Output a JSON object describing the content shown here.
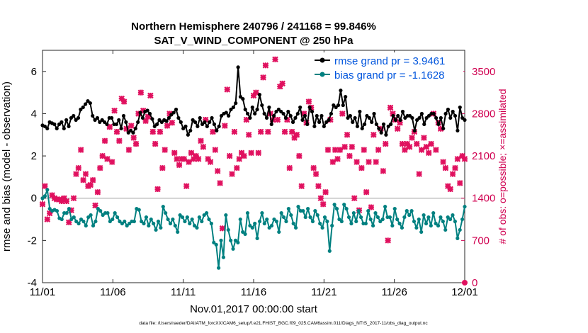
{
  "chart_data": {
    "type": "line",
    "title": "Northern Hemisphere 240796 / 241168 = 99.846%",
    "subtitle": "SAT_V_WIND_COMPONENT @ 250 hPa",
    "xlabel": "Nov.01,2017 00:00:00 start",
    "ylabel_left": "rmse and bias (model - observation)",
    "ylabel_right": "# of obs: o=possible; ×=assimilated",
    "footer": "data file: /Users/raeder/DAI/ATM_forcXX/CAM6_setup/f.e21.FHIST_BGC.f09_025.CAM6assim.011/Diags_NTrS_2017-11/obs_diag_output.nc",
    "x_ticks": [
      {
        "day": 0,
        "label": "11/01"
      },
      {
        "day": 5,
        "label": "11/06"
      },
      {
        "day": 10,
        "label": "11/11"
      },
      {
        "day": 15,
        "label": "11/16"
      },
      {
        "day": 20,
        "label": "11/21"
      },
      {
        "day": 25,
        "label": "11/26"
      },
      {
        "day": 30,
        "label": "12/01"
      }
    ],
    "xlim": [
      0,
      30
    ],
    "ylim_left": [
      -4,
      7
    ],
    "yticks_left": [
      -4,
      -2,
      0,
      2,
      4,
      6
    ],
    "ylim_right": [
      0,
      3850
    ],
    "yticks_right": [
      0,
      700,
      1400,
      2100,
      2800,
      3500
    ],
    "legend": {
      "position": "top-right",
      "entries": [
        {
          "label": "rmse grand pr = 3.9461",
          "series": "rmse"
        },
        {
          "label": "bias grand pr = -1.1628",
          "series": "bias"
        }
      ]
    },
    "series": [
      {
        "name": "rmse",
        "color": "#000000",
        "axis": "left",
        "values": [
          3.45,
          3.4,
          3.3,
          3.6,
          3.55,
          3.5,
          3.3,
          3.5,
          3.6,
          3.3,
          3.7,
          3.4,
          3.8,
          3.9,
          3.7,
          3.8,
          4.2,
          4.3,
          4.45,
          4.6,
          4.5,
          3.9,
          3.7,
          3.8,
          3.6,
          3.7,
          3.6,
          3.5,
          3.8,
          3.8,
          3.5,
          3.5,
          3.7,
          3.3,
          3.9,
          3.6,
          3.1,
          3.2,
          3.1,
          3.3,
          3.6,
          4.05,
          3.8,
          4.1,
          4.15,
          4.0,
          3.75,
          3.4,
          3.5,
          3.7,
          3.6,
          3.7,
          3.65,
          3.8,
          3.95,
          4.05,
          4.2,
          3.8,
          3.6,
          3.3,
          3.4,
          3.0,
          3.2,
          3.7,
          3.6,
          3.4,
          3.8,
          3.5,
          3.6,
          3.4,
          3.6,
          3.8,
          3.5,
          3.2,
          3.4,
          3.9,
          4.0,
          4.05,
          3.9,
          4.2,
          4.3,
          4.5,
          6.2,
          4.8,
          4.7,
          4.2,
          4.0,
          3.8,
          4.3,
          4.0,
          4.2,
          4.9,
          4.4,
          4.0,
          3.8,
          4.3,
          3.5,
          3.9,
          4.1,
          4.2,
          4.1,
          4.0,
          3.8,
          4.1,
          3.9,
          3.6,
          3.8,
          4.0,
          4.3,
          3.7,
          3.9,
          3.5,
          4.3,
          4.1,
          3.4,
          3.9,
          3.6,
          3.9,
          3.4,
          3.6,
          3.7,
          4.0,
          4.4,
          4.3,
          4.4,
          5.1,
          4.4,
          4.8,
          3.8,
          3.9,
          3.6,
          3.8,
          3.4,
          4.1,
          3.3,
          3.5,
          3.9,
          3.8,
          3.6,
          4.0,
          3.5,
          3.3,
          3.1,
          3.5,
          3.0,
          3.4,
          3.5,
          3.9,
          3.7,
          3.9,
          3.7,
          4.1,
          3.8,
          3.9,
          3.9,
          3.8,
          3.2,
          3.7,
          3.8,
          4.0,
          3.5,
          3.8,
          3.9,
          4.0,
          4.0,
          3.8,
          3.5,
          3.8,
          3.3,
          4.0,
          4.2,
          3.8,
          4.1,
          3.9,
          3.2,
          4.3,
          3.8,
          3.7
        ]
      },
      {
        "name": "bias",
        "color": "#008080",
        "axis": "left",
        "values": [
          0.0,
          0.1,
          0.4,
          -0.5,
          -0.6,
          -0.55,
          -0.6,
          -0.95,
          -1.0,
          -0.7,
          -0.7,
          -0.5,
          -1.0,
          -0.9,
          -1.1,
          -1.2,
          -1.0,
          -1.1,
          -1.3,
          -0.9,
          -0.8,
          -1.3,
          -1.1,
          -0.5,
          -0.6,
          -0.8,
          -0.7,
          -0.7,
          -1.1,
          -1.0,
          -0.7,
          -0.9,
          -1.1,
          -1.2,
          -1.1,
          -1.3,
          -1.2,
          -1.1,
          -1.1,
          -0.5,
          -0.55,
          -1.1,
          -1.2,
          -0.9,
          -1.3,
          -1.0,
          -1.2,
          -1.5,
          -1.1,
          -1.4,
          -0.4,
          -0.7,
          -1.0,
          -1.2,
          -1.0,
          -1.3,
          -1.6,
          -0.8,
          -0.9,
          -1.1,
          -0.9,
          -1.2,
          -1.0,
          -1.3,
          -1.4,
          -0.9,
          -1.1,
          -0.8,
          -0.7,
          -1.0,
          -1.2,
          -2.1,
          -2.2,
          -3.3,
          -2.0,
          -2.8,
          -0.8,
          -1.5,
          -2.0,
          -2.4,
          -2.0,
          -2.1,
          -1.0,
          -1.6,
          -1.7,
          -0.7,
          -1.3,
          -1.4,
          -1.2,
          -1.9,
          -1.1,
          -0.7,
          -1.2,
          -1.0,
          -1.4,
          -1.3,
          -1.0,
          -1.1,
          -1.6,
          -0.7,
          -0.9,
          -1.1,
          -0.5,
          -0.8,
          -1.2,
          -1.4,
          -0.4,
          -0.6,
          -0.6,
          -0.9,
          -0.5,
          -0.9,
          -1.1,
          -0.6,
          -0.8,
          -1.2,
          -1.4,
          -0.9,
          -1.1,
          -2.5,
          -1.3,
          -0.3,
          -0.5,
          -1.0,
          -1.1,
          -0.3,
          -0.5,
          -0.9,
          -1.2,
          -0.7,
          -1.1,
          -0.6,
          -0.9,
          -1.2,
          -1.2,
          -0.6,
          -1.0,
          -1.3,
          -0.7,
          -0.9,
          -1.1,
          -1.0,
          -0.4,
          -0.9,
          -0.9,
          -1.3,
          -0.5,
          -1.0,
          -1.2,
          -1.4,
          -0.9,
          -0.6,
          -0.8,
          -0.6,
          -1.1,
          -1.4,
          -1.0,
          -1.6,
          -0.8,
          -1.2,
          -0.9,
          -1.3,
          -0.7,
          -1.2,
          -1.3,
          -0.9,
          -1.1,
          -1.5,
          -0.9,
          -1.0,
          -0.8,
          -1.1,
          -1.9,
          -1.5,
          -1.0,
          -0.4
        ]
      },
      {
        "name": "obs_assimilated",
        "color": "#e0115f",
        "axis": "right",
        "marker": "x",
        "values": [
          1300,
          1600,
          1050,
          1150,
          1450,
          1400,
          1380,
          1380,
          1350,
          1400,
          1350,
          1000,
          1200,
          1400,
          1800,
          1900,
          2200,
          1700,
          1800,
          1600,
          1620,
          1700,
          1280,
          1500,
          1900,
          2100,
          2350,
          2050,
          2580,
          2000,
          2850,
          2500,
          2350,
          3050,
          3000,
          2550,
          2200,
          2600,
          2400,
          2300,
          2800,
          3150,
          2850,
          2680,
          2750,
          3100,
          2500,
          2300,
          1550,
          2500,
          1900,
          2200,
          2600,
          2800,
          2650,
          2150,
          2050,
          1950,
          2050,
          2050,
          1600,
          2000,
          2150,
          2050,
          2100,
          2050,
          2350,
          2250,
          2700,
          2050,
          2000,
          2500,
          2200,
          1850,
          1650,
          900,
          2600,
          3200,
          2100,
          1800,
          2500,
          1900,
          2050,
          2150,
          2100,
          2700,
          2450,
          2150,
          3100,
          3150,
          2150,
          2500,
          3400,
          3600,
          2500,
          2800,
          2700,
          3700,
          2700,
          3250,
          3300,
          2500,
          2700,
          1900,
          2500,
          2400,
          2450,
          2100,
          1600,
          2800,
          2650,
          3000,
          2900,
          1900,
          1800,
          1600,
          1400,
          1300,
          1500,
          2200,
          2700,
          2000,
          2200,
          2050,
          2200,
          2800,
          2250,
          2450,
          2100,
          2250,
          1400,
          2000,
          1200,
          1900,
          2200,
          1500,
          2000,
          1250,
          2450,
          2000,
          2200,
          2550,
          1850,
          2300,
          700,
          2900,
          2800,
          2700,
          2550,
          2650,
          2300,
          2200,
          2300,
          2250,
          2400,
          2500,
          2300,
          1800,
          2200,
          2400,
          2250,
          2150,
          2300,
          2800,
          2200,
          2650,
          2550,
          2000,
          1900,
          1600,
          1550,
          1800,
          1900,
          2050,
          1650,
          2100,
          2050
        ]
      },
      {
        "name": "obs_possible",
        "color": "#e0115f",
        "axis": "right",
        "marker": "o",
        "values": [
          {
            "day": 30,
            "value": 0
          }
        ]
      }
    ]
  }
}
